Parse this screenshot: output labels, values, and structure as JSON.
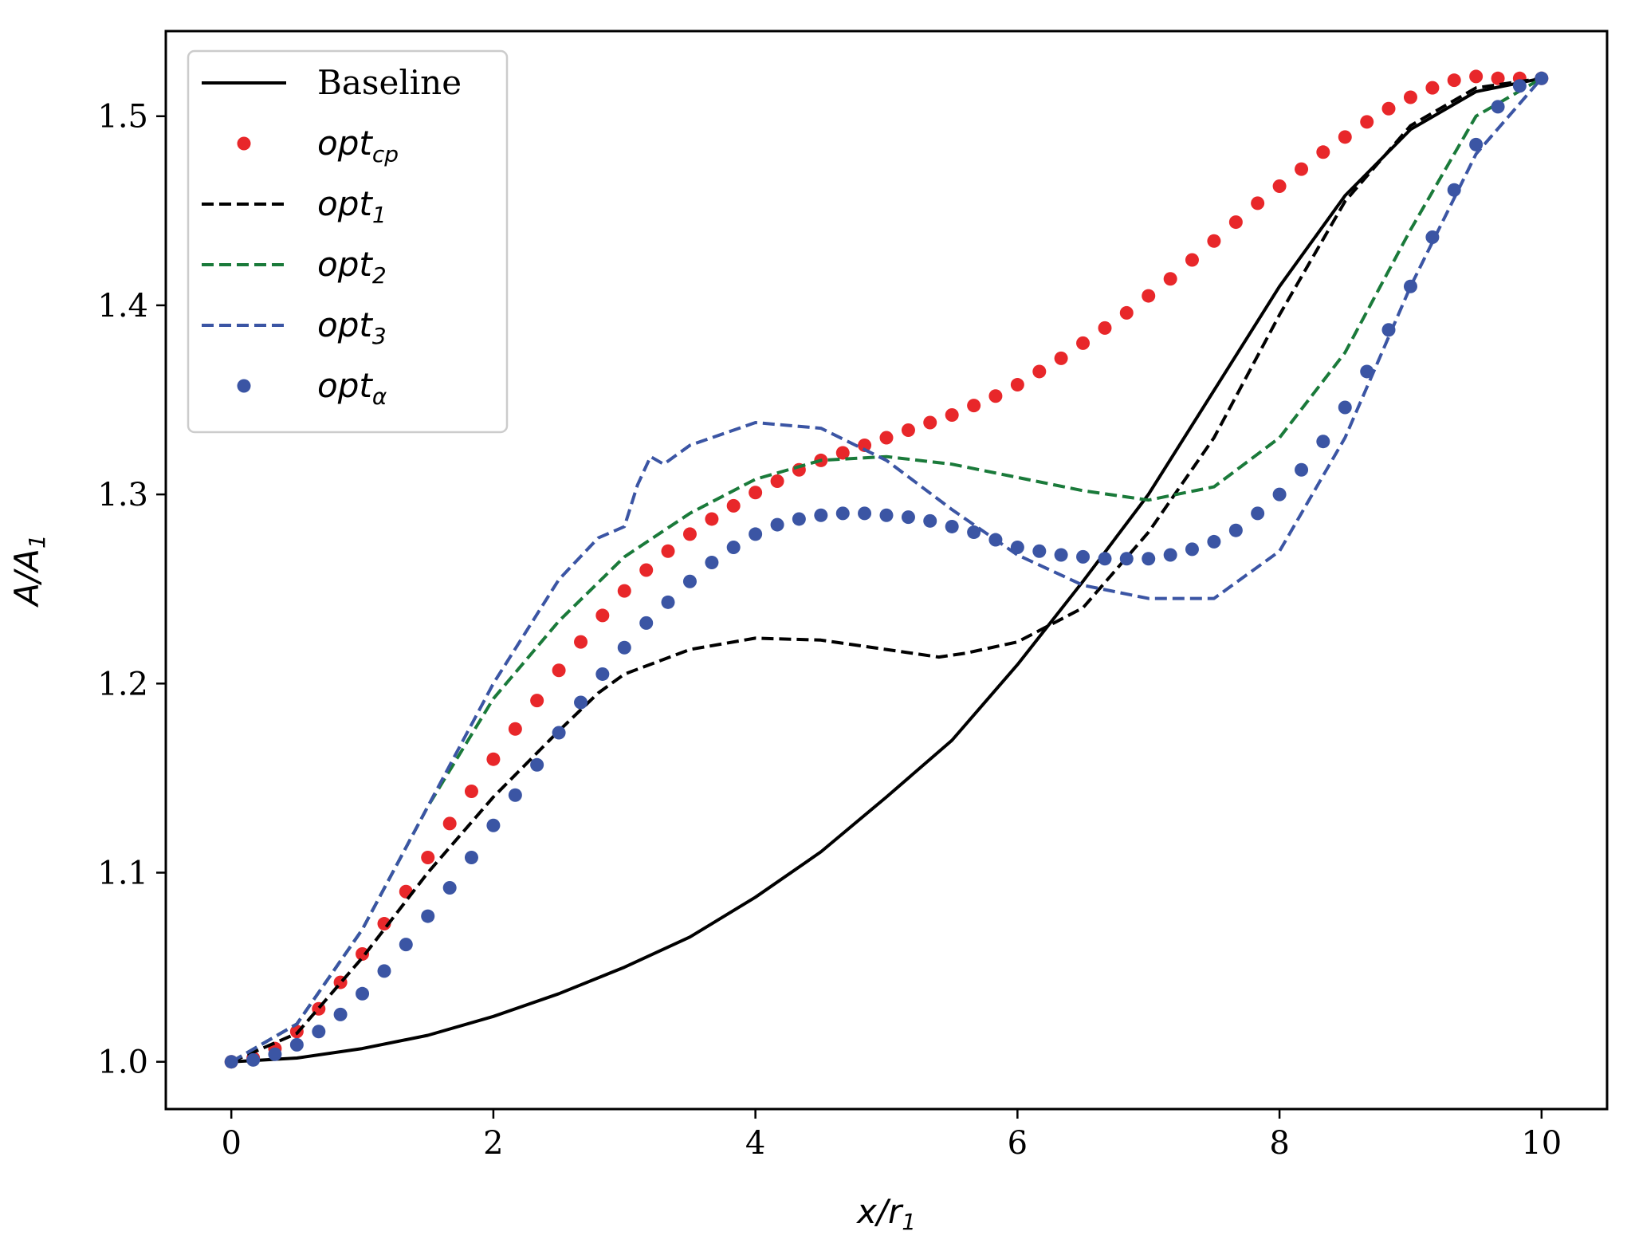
{
  "chart_data": {
    "type": "line",
    "title": "",
    "xlabel": "x/r",
    "xlabel_sub": "1",
    "ylabel": "A/A",
    "ylabel_sub": "1",
    "xlim": [
      -0.5,
      10.5
    ],
    "ylim": [
      0.975,
      1.545
    ],
    "xticks": [
      0,
      2,
      4,
      6,
      8,
      10
    ],
    "xtick_labels": [
      "0",
      "2",
      "4",
      "6",
      "8",
      "10"
    ],
    "yticks": [
      1.0,
      1.1,
      1.2,
      1.3,
      1.4,
      1.5
    ],
    "ytick_labels": [
      "1.0",
      "1.1",
      "1.2",
      "1.3",
      "1.4",
      "1.5"
    ],
    "grid": false,
    "legend_position": "upper-left",
    "series": [
      {
        "name": "Baseline",
        "name_base": "Baseline",
        "name_sub": "",
        "style": "solid",
        "color": "#000000",
        "x": [
          0,
          0.5,
          1,
          1.5,
          2,
          2.5,
          3,
          3.5,
          4,
          4.5,
          5,
          5.5,
          6,
          6.5,
          7,
          7.5,
          8,
          8.5,
          9,
          9.5,
          10
        ],
        "y": [
          1.0,
          1.002,
          1.007,
          1.014,
          1.024,
          1.036,
          1.05,
          1.066,
          1.087,
          1.111,
          1.14,
          1.17,
          1.21,
          1.254,
          1.3,
          1.355,
          1.41,
          1.458,
          1.493,
          1.513,
          1.52
        ]
      },
      {
        "name": "opt_cp",
        "name_base": "opt",
        "name_sub": "cp",
        "style": "dots",
        "color": "#e8272a",
        "x": [
          0,
          0.167,
          0.333,
          0.5,
          0.667,
          0.833,
          1.0,
          1.167,
          1.333,
          1.5,
          1.667,
          1.833,
          2.0,
          2.167,
          2.333,
          2.5,
          2.667,
          2.833,
          3.0,
          3.167,
          3.333,
          3.5,
          3.667,
          3.833,
          4.0,
          4.167,
          4.333,
          4.5,
          4.667,
          4.833,
          5.0,
          5.167,
          5.333,
          5.5,
          5.667,
          5.833,
          6.0,
          6.167,
          6.333,
          6.5,
          6.667,
          6.833,
          7.0,
          7.167,
          7.333,
          7.5,
          7.667,
          7.833,
          8.0,
          8.167,
          8.333,
          8.5,
          8.667,
          8.833,
          9.0,
          9.167,
          9.333,
          9.5,
          9.667,
          9.833,
          10.0
        ],
        "y": [
          1.0,
          1.002,
          1.007,
          1.016,
          1.028,
          1.042,
          1.057,
          1.073,
          1.09,
          1.108,
          1.126,
          1.143,
          1.16,
          1.176,
          1.191,
          1.207,
          1.222,
          1.236,
          1.249,
          1.26,
          1.27,
          1.279,
          1.287,
          1.294,
          1.301,
          1.307,
          1.313,
          1.318,
          1.322,
          1.326,
          1.33,
          1.334,
          1.338,
          1.342,
          1.347,
          1.352,
          1.358,
          1.365,
          1.372,
          1.38,
          1.388,
          1.396,
          1.405,
          1.414,
          1.424,
          1.434,
          1.444,
          1.454,
          1.463,
          1.472,
          1.481,
          1.489,
          1.497,
          1.504,
          1.51,
          1.515,
          1.519,
          1.521,
          1.52,
          1.52,
          1.52
        ]
      },
      {
        "name": "opt_1",
        "name_base": "opt",
        "name_sub": "1",
        "style": "dashed",
        "color": "#000000",
        "x": [
          0,
          0.5,
          1,
          1.5,
          2,
          2.5,
          2.8,
          3,
          3.5,
          4,
          4.5,
          5,
          5.4,
          5.6,
          6,
          6.5,
          7,
          7.5,
          8,
          8.5,
          9,
          9.5,
          10
        ],
        "y": [
          1.0,
          1.015,
          1.055,
          1.1,
          1.14,
          1.175,
          1.195,
          1.205,
          1.218,
          1.224,
          1.223,
          1.218,
          1.214,
          1.216,
          1.222,
          1.24,
          1.28,
          1.33,
          1.395,
          1.455,
          1.495,
          1.515,
          1.52
        ]
      },
      {
        "name": "opt_2",
        "name_base": "opt",
        "name_sub": "2",
        "style": "dashed",
        "color": "#1a7a3a",
        "x": [
          0,
          0.5,
          1,
          1.5,
          2,
          2.5,
          3,
          3.5,
          4,
          4.5,
          5,
          5.5,
          6,
          6.5,
          7,
          7.5,
          8,
          8.5,
          9,
          9.5,
          10
        ],
        "y": [
          1.0,
          1.02,
          1.07,
          1.135,
          1.192,
          1.233,
          1.267,
          1.29,
          1.308,
          1.318,
          1.32,
          1.316,
          1.309,
          1.302,
          1.297,
          1.304,
          1.33,
          1.375,
          1.44,
          1.5,
          1.52
        ]
      },
      {
        "name": "opt_3",
        "name_base": "opt",
        "name_sub": "3",
        "style": "dashed",
        "color": "#3b55a4",
        "x": [
          0,
          0.5,
          1,
          1.5,
          2,
          2.5,
          2.8,
          3,
          3.1,
          3.2,
          3.3,
          3.5,
          4,
          4.5,
          5,
          5.5,
          6,
          6.5,
          7,
          7.5,
          8,
          8.5,
          9,
          9.5,
          10
        ],
        "y": [
          1.0,
          1.02,
          1.07,
          1.135,
          1.2,
          1.255,
          1.277,
          1.283,
          1.305,
          1.32,
          1.316,
          1.326,
          1.338,
          1.335,
          1.318,
          1.292,
          1.268,
          1.252,
          1.245,
          1.245,
          1.27,
          1.33,
          1.41,
          1.48,
          1.52
        ]
      },
      {
        "name": "opt_alpha",
        "name_base": "opt",
        "name_sub": "α",
        "style": "dots",
        "color": "#3b55a4",
        "x": [
          0,
          0.167,
          0.333,
          0.5,
          0.667,
          0.833,
          1.0,
          1.167,
          1.333,
          1.5,
          1.667,
          1.833,
          2.0,
          2.167,
          2.333,
          2.5,
          2.667,
          2.833,
          3.0,
          3.167,
          3.333,
          3.5,
          3.667,
          3.833,
          4.0,
          4.167,
          4.333,
          4.5,
          4.667,
          4.833,
          5.0,
          5.167,
          5.333,
          5.5,
          5.667,
          5.833,
          6.0,
          6.167,
          6.333,
          6.5,
          6.667,
          6.833,
          7.0,
          7.167,
          7.333,
          7.5,
          7.667,
          7.833,
          8.0,
          8.167,
          8.333,
          8.5,
          8.667,
          8.833,
          9.0,
          9.167,
          9.333,
          9.5,
          9.667,
          9.833,
          10.0
        ],
        "y": [
          1.0,
          1.001,
          1.004,
          1.009,
          1.016,
          1.025,
          1.036,
          1.048,
          1.062,
          1.077,
          1.092,
          1.108,
          1.125,
          1.141,
          1.157,
          1.174,
          1.19,
          1.205,
          1.219,
          1.232,
          1.243,
          1.254,
          1.264,
          1.272,
          1.279,
          1.284,
          1.287,
          1.289,
          1.29,
          1.29,
          1.289,
          1.288,
          1.286,
          1.283,
          1.28,
          1.276,
          1.272,
          1.27,
          1.268,
          1.267,
          1.266,
          1.266,
          1.266,
          1.268,
          1.271,
          1.275,
          1.281,
          1.29,
          1.3,
          1.313,
          1.328,
          1.346,
          1.365,
          1.387,
          1.41,
          1.436,
          1.461,
          1.485,
          1.505,
          1.516,
          1.52
        ]
      }
    ]
  }
}
